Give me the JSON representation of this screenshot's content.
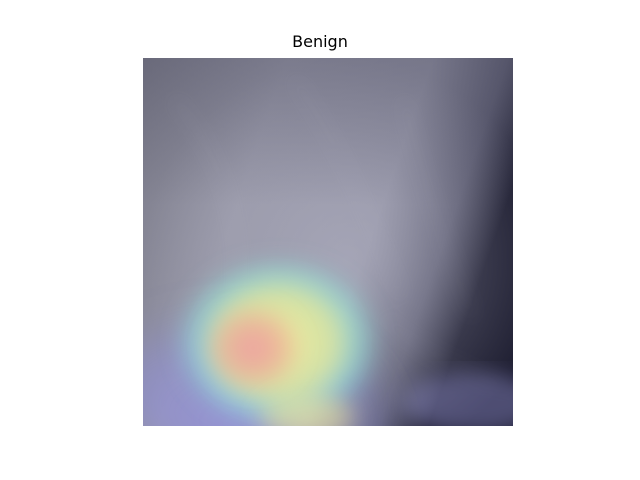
{
  "title": "Benign"
}
